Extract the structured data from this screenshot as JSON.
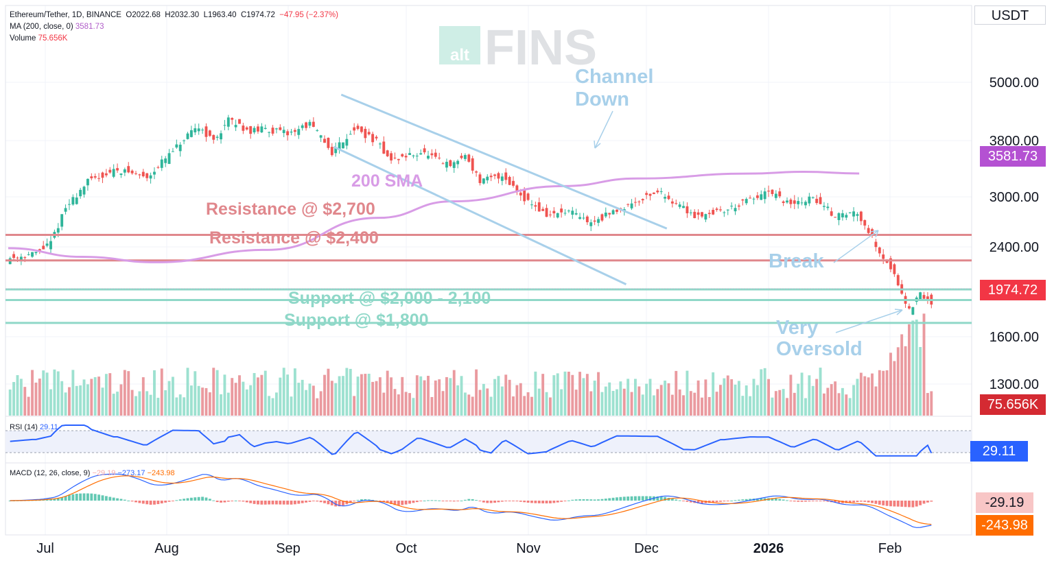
{
  "header": {
    "symbol": "Ethereum/Tether, 1D, BINANCE",
    "o_label": "O",
    "o": "2022.68",
    "h_label": "H",
    "h": "2032.30",
    "l_label": "L",
    "l": "1963.40",
    "c_label": "C",
    "c": "1974.72",
    "change": "−47.95 (−2.37%)",
    "ma_label": "MA (200, close, 0)",
    "ma_value": "3581.73",
    "volume_label": "Volume",
    "volume_value": "75.656K",
    "rsi_label": "RSI (14)",
    "rsi_value": "29.11",
    "macd_label": "MACD (12, 26, close, 9)",
    "macd_hist": "−29.19",
    "macd_line": "−273.17",
    "macd_signal": "−243.98"
  },
  "currency": "USDT",
  "logo": {
    "left": "alt",
    "right": "FINS"
  },
  "badges": {
    "ma": "3581.73",
    "price": "1974.72",
    "volume": "75.656K",
    "rsi": "29.11",
    "macd_hist": "-29.19",
    "macd_signal": "-243.98"
  },
  "colors": {
    "up": "#8cdcc8",
    "down": "#e6888e",
    "sma": "#d89ce6",
    "resistance": "#e0878c",
    "support": "#8fd8c8",
    "channel": "#a8d0ea",
    "rsi": "#2962ff",
    "macd": "#2962ff",
    "signal": "#ff6d00",
    "badge_ma": "#b451d2",
    "badge_price": "#f23645",
    "badge_volume": "#d42a32",
    "badge_rsi": "#2962ff",
    "badge_macd_hist": "#f8c6c6",
    "badge_macd_signal": "#ff6d00"
  },
  "chart_data": {
    "type": "candlestick",
    "axis_scale": "log",
    "y_ticks": [
      "5000.00",
      "3800.00",
      "3000.00",
      "2400.00",
      "1600.00",
      "1300.00"
    ],
    "x_ticks": [
      "Jul",
      "Aug",
      "Sep",
      "Oct",
      "Nov",
      "Dec",
      "2026",
      "Feb"
    ],
    "sma200": [
      [
        0,
        2540
      ],
      [
        20,
        2440
      ],
      [
        40,
        2380
      ],
      [
        70,
        2520
      ],
      [
        100,
        2920
      ],
      [
        120,
        3150
      ],
      [
        150,
        3380
      ],
      [
        170,
        3500
      ],
      [
        200,
        3580
      ],
      [
        215,
        3610
      ],
      [
        230,
        3581.73
      ]
    ],
    "levels": [
      {
        "label": "Resistance @ $2,700",
        "price": 2700,
        "kind": "resistance"
      },
      {
        "label": "Resistance @ $2,400",
        "price": 2400,
        "kind": "resistance"
      },
      {
        "label": "",
        "price": 2100,
        "kind": "support"
      },
      {
        "label": "Support @ $2,000 - 2,100",
        "price": 2000,
        "kind": "support"
      },
      {
        "label": "Support @ $1,800",
        "price": 1800,
        "kind": "support"
      }
    ],
    "channel": {
      "label_line1": "Channel",
      "label_line2": "Down",
      "upper": [
        [
          90,
          5150
        ],
        [
          178,
          2780
        ]
      ],
      "lower": [
        [
          88,
          4050
        ],
        [
          167,
          2150
        ]
      ]
    },
    "annotations": {
      "sma_label": "200 SMA",
      "break": "Break",
      "oversold_line1": "Very",
      "oversold_line2": "Oversold"
    },
    "close_anchors": [
      [
        0,
        2420
      ],
      [
        8,
        2480
      ],
      [
        12,
        2600
      ],
      [
        16,
        3050
      ],
      [
        22,
        3450
      ],
      [
        30,
        3650
      ],
      [
        38,
        3520
      ],
      [
        44,
        3900
      ],
      [
        52,
        4450
      ],
      [
        56,
        4150
      ],
      [
        60,
        4580
      ],
      [
        66,
        4350
      ],
      [
        70,
        4400
      ],
      [
        76,
        4300
      ],
      [
        82,
        4500
      ],
      [
        88,
        3950
      ],
      [
        94,
        4400
      ],
      [
        100,
        4150
      ],
      [
        104,
        3800
      ],
      [
        112,
        3950
      ],
      [
        120,
        3700
      ],
      [
        124,
        3900
      ],
      [
        128,
        3450
      ],
      [
        134,
        3550
      ],
      [
        140,
        3200
      ],
      [
        146,
        2950
      ],
      [
        152,
        3000
      ],
      [
        158,
        2850
      ],
      [
        166,
        3050
      ],
      [
        176,
        3300
      ],
      [
        186,
        2950
      ],
      [
        194,
        3020
      ],
      [
        206,
        3280
      ],
      [
        212,
        3100
      ],
      [
        218,
        3200
      ],
      [
        224,
        2950
      ],
      [
        230,
        3000
      ],
      [
        236,
        2500
      ],
      [
        240,
        2250
      ],
      [
        244,
        1900
      ],
      [
        247,
        2050
      ],
      [
        250,
        1974.72
      ]
    ],
    "volume_note": "relative heights",
    "rsi_last": 29.11,
    "macd_last": {
      "macd": -273.17,
      "signal": -243.98,
      "hist": -29.19
    }
  }
}
